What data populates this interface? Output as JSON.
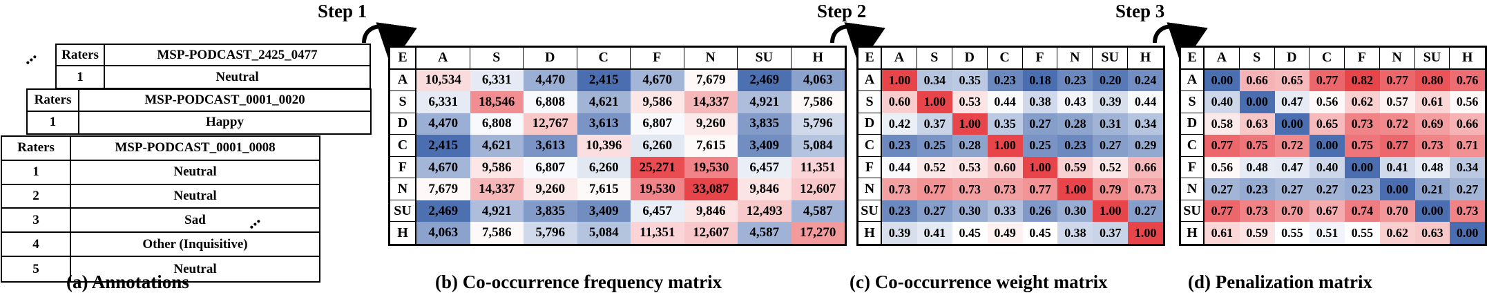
{
  "colors": {
    "low": "#4a6eb0",
    "mid": "#ffffff",
    "high": "#e8454a"
  },
  "annotations": {
    "caption": "(a) Annotations",
    "cards": [
      {
        "header_left": "Raters",
        "header_right": "MSP-PODCAST_2425_0477",
        "rows": [
          {
            "rater": "1",
            "label": "Neutral"
          }
        ]
      },
      {
        "header_left": "Raters",
        "header_right": "MSP-PODCAST_0001_0020",
        "rows": [
          {
            "rater": "1",
            "label": "Happy"
          }
        ]
      },
      {
        "header_left": "Raters",
        "header_right": "MSP-PODCAST_0001_0008",
        "rows": [
          {
            "rater": "1",
            "label": "Neutral"
          },
          {
            "rater": "2",
            "label": "Neutral"
          },
          {
            "rater": "3",
            "label": "Sad"
          },
          {
            "rater": "4",
            "label": "Other (Inquisitive)"
          },
          {
            "rater": "5",
            "label": "Neutral"
          }
        ]
      }
    ],
    "dots": "∙∙∙"
  },
  "steps": [
    "Step 1",
    "Step 2",
    "Step 3"
  ],
  "matrices": [
    {
      "caption": "(b) Co-occurrence frequency matrix",
      "corner": "E",
      "labels": [
        "A",
        "S",
        "D",
        "C",
        "F",
        "N",
        "SU",
        "H"
      ],
      "display": [
        [
          "10,534",
          "6,331",
          "4,470",
          "2,415",
          "4,670",
          "7,679",
          "2,469",
          "4,063"
        ],
        [
          "6,331",
          "18,546",
          "6,808",
          "4,621",
          "9,586",
          "14,337",
          "4,921",
          "7,586"
        ],
        [
          "4,470",
          "6,808",
          "12,767",
          "3,613",
          "6,807",
          "9,260",
          "3,835",
          "5,796"
        ],
        [
          "2,415",
          "4,621",
          "3,613",
          "10,396",
          "6,260",
          "7,615",
          "3,409",
          "5,084"
        ],
        [
          "4,670",
          "9,586",
          "6,807",
          "6,260",
          "25,271",
          "19,530",
          "6,457",
          "11,351"
        ],
        [
          "7,679",
          "14,337",
          "9,260",
          "7,615",
          "19,530",
          "33,087",
          "9,846",
          "12,607"
        ],
        [
          "2,469",
          "4,921",
          "3,835",
          "3,409",
          "6,457",
          "9,846",
          "12,493",
          "4,587"
        ],
        [
          "4,063",
          "7,586",
          "5,796",
          "5,084",
          "11,351",
          "12,607",
          "4,587",
          "17,270"
        ]
      ],
      "values": [
        [
          10534,
          6331,
          4470,
          2415,
          4670,
          7679,
          2469,
          4063
        ],
        [
          6331,
          18546,
          6808,
          4621,
          9586,
          14337,
          4921,
          7586
        ],
        [
          4470,
          6808,
          12767,
          3613,
          6807,
          9260,
          3835,
          5796
        ],
        [
          2415,
          4621,
          3613,
          10396,
          6260,
          7615,
          3409,
          5084
        ],
        [
          4670,
          9586,
          6807,
          6260,
          25271,
          19530,
          6457,
          11351
        ],
        [
          7679,
          14337,
          9260,
          7615,
          19530,
          33087,
          9846,
          12607
        ],
        [
          2469,
          4921,
          3835,
          3409,
          6457,
          9846,
          12493,
          4587
        ],
        [
          4063,
          7586,
          5796,
          5084,
          11351,
          12607,
          4587,
          17270
        ]
      ],
      "scale": {
        "min": 2400,
        "mid": 7000,
        "max": 26000
      }
    },
    {
      "caption": "(c) Co-occurrence weight matrix",
      "corner": "E",
      "labels": [
        "A",
        "S",
        "D",
        "C",
        "F",
        "N",
        "SU",
        "H"
      ],
      "display": [
        [
          "1.00",
          "0.34",
          "0.35",
          "0.23",
          "0.18",
          "0.23",
          "0.20",
          "0.24"
        ],
        [
          "0.60",
          "1.00",
          "0.53",
          "0.44",
          "0.38",
          "0.43",
          "0.39",
          "0.44"
        ],
        [
          "0.42",
          "0.37",
          "1.00",
          "0.35",
          "0.27",
          "0.28",
          "0.31",
          "0.34"
        ],
        [
          "0.23",
          "0.25",
          "0.28",
          "1.00",
          "0.25",
          "0.23",
          "0.27",
          "0.29"
        ],
        [
          "0.44",
          "0.52",
          "0.53",
          "0.60",
          "1.00",
          "0.59",
          "0.52",
          "0.66"
        ],
        [
          "0.73",
          "0.77",
          "0.73",
          "0.73",
          "0.77",
          "1.00",
          "0.79",
          "0.73"
        ],
        [
          "0.23",
          "0.27",
          "0.30",
          "0.33",
          "0.26",
          "0.30",
          "1.00",
          "0.27"
        ],
        [
          "0.39",
          "0.41",
          "0.45",
          "0.49",
          "0.45",
          "0.38",
          "0.37",
          "1.00"
        ]
      ],
      "values": [
        [
          1.0,
          0.34,
          0.35,
          0.23,
          0.18,
          0.23,
          0.2,
          0.24
        ],
        [
          0.6,
          1.0,
          0.53,
          0.44,
          0.38,
          0.43,
          0.39,
          0.44
        ],
        [
          0.42,
          0.37,
          1.0,
          0.35,
          0.27,
          0.28,
          0.31,
          0.34
        ],
        [
          0.23,
          0.25,
          0.28,
          1.0,
          0.25,
          0.23,
          0.27,
          0.29
        ],
        [
          0.44,
          0.52,
          0.53,
          0.6,
          1.0,
          0.59,
          0.52,
          0.66
        ],
        [
          0.73,
          0.77,
          0.73,
          0.73,
          0.77,
          1.0,
          0.79,
          0.73
        ],
        [
          0.23,
          0.27,
          0.3,
          0.33,
          0.26,
          0.3,
          1.0,
          0.27
        ],
        [
          0.39,
          0.41,
          0.45,
          0.49,
          0.45,
          0.38,
          0.37,
          1.0
        ]
      ],
      "scale": {
        "min": 0.18,
        "mid": 0.45,
        "max": 1.0
      }
    },
    {
      "caption": "(d) Penalization matrix",
      "corner": "E",
      "labels": [
        "A",
        "S",
        "D",
        "C",
        "F",
        "N",
        "SU",
        "H"
      ],
      "display": [
        [
          "0.00",
          "0.66",
          "0.65",
          "0.77",
          "0.82",
          "0.77",
          "0.80",
          "0.76"
        ],
        [
          "0.40",
          "0.00",
          "0.47",
          "0.56",
          "0.62",
          "0.57",
          "0.61",
          "0.56"
        ],
        [
          "0.58",
          "0.63",
          "0.00",
          "0.65",
          "0.73",
          "0.72",
          "0.69",
          "0.66"
        ],
        [
          "0.77",
          "0.75",
          "0.72",
          "0.00",
          "0.75",
          "0.77",
          "0.73",
          "0.71"
        ],
        [
          "0.56",
          "0.48",
          "0.47",
          "0.40",
          "0.00",
          "0.41",
          "0.48",
          "0.34"
        ],
        [
          "0.27",
          "0.23",
          "0.27",
          "0.27",
          "0.23",
          "0.00",
          "0.21",
          "0.27"
        ],
        [
          "0.77",
          "0.73",
          "0.70",
          "0.67",
          "0.74",
          "0.70",
          "0.00",
          "0.73"
        ],
        [
          "0.61",
          "0.59",
          "0.55",
          "0.51",
          "0.55",
          "0.62",
          "0.63",
          "0.00"
        ]
      ],
      "values": [
        [
          0.0,
          0.66,
          0.65,
          0.77,
          0.82,
          0.77,
          0.8,
          0.76
        ],
        [
          0.4,
          0.0,
          0.47,
          0.56,
          0.62,
          0.57,
          0.61,
          0.56
        ],
        [
          0.58,
          0.63,
          0.0,
          0.65,
          0.73,
          0.72,
          0.69,
          0.66
        ],
        [
          0.77,
          0.75,
          0.72,
          0.0,
          0.75,
          0.77,
          0.73,
          0.71
        ],
        [
          0.56,
          0.48,
          0.47,
          0.4,
          0.0,
          0.41,
          0.48,
          0.34
        ],
        [
          0.27,
          0.23,
          0.27,
          0.27,
          0.23,
          0.0,
          0.21,
          0.27
        ],
        [
          0.77,
          0.73,
          0.7,
          0.67,
          0.74,
          0.7,
          0.0,
          0.73
        ],
        [
          0.61,
          0.59,
          0.55,
          0.51,
          0.55,
          0.62,
          0.63,
          0.0
        ]
      ],
      "scale": {
        "min": 0.0,
        "mid": 0.55,
        "max": 0.82
      }
    }
  ]
}
